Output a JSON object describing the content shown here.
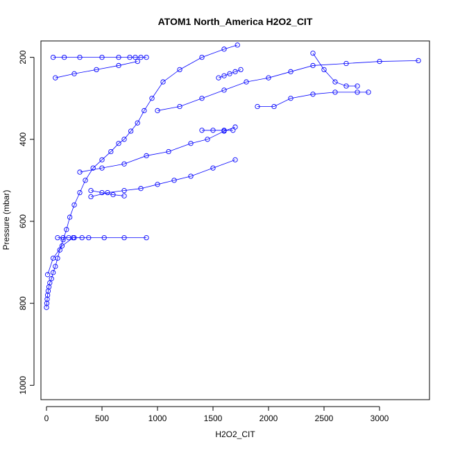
{
  "chart_data": {
    "type": "scatter",
    "title": "ATOM1 North_America H2O2_CIT",
    "xlabel": "H2O2_CIT",
    "ylabel": "Pressure (mbar)",
    "xlim": [
      -50,
      3450
    ],
    "ylim": [
      1035,
      160
    ],
    "y_reversed": true,
    "x_ticks": [
      0,
      500,
      1000,
      1500,
      2000,
      2500,
      3000
    ],
    "y_ticks": [
      200,
      400,
      600,
      800,
      1000
    ],
    "grid": false,
    "legend": "none",
    "marker": "open-circle",
    "connected_by_line": true,
    "color": "#0000ff",
    "series": [
      {
        "x": [
          0,
          3,
          6,
          10,
          15,
          22,
          30,
          45,
          60,
          80,
          100,
          120,
          150,
          180,
          210,
          250,
          300,
          350,
          420,
          500,
          580,
          650,
          700,
          760,
          820,
          880,
          950,
          1050,
          1200,
          1400,
          1600,
          1720
        ],
        "y": [
          810,
          800,
          790,
          780,
          770,
          760,
          750,
          740,
          725,
          710,
          690,
          670,
          645,
          620,
          590,
          560,
          530,
          500,
          470,
          450,
          430,
          410,
          400,
          380,
          360,
          330,
          300,
          260,
          230,
          200,
          180,
          170
        ]
      },
      {
        "x": [
          10,
          60,
          140,
          240,
          380,
          520,
          700,
          900
        ],
        "y": [
          730,
          690,
          660,
          640,
          640,
          640,
          640,
          640
        ]
      },
      {
        "x": [
          60,
          160,
          300,
          500,
          650,
          750,
          800,
          850,
          900
        ],
        "y": [
          200,
          200,
          200,
          200,
          200,
          200,
          200,
          200,
          200
        ]
      },
      {
        "x": [
          80,
          250,
          450,
          650,
          820
        ],
        "y": [
          250,
          240,
          230,
          220,
          210
        ]
      },
      {
        "x": [
          400,
          550,
          700,
          850,
          1000,
          1150,
          1300,
          1500,
          1700
        ],
        "y": [
          540,
          530,
          525,
          520,
          510,
          500,
          490,
          470,
          450
        ]
      },
      {
        "x": [
          300,
          500,
          700,
          900,
          1100,
          1300,
          1450,
          1600,
          1700
        ],
        "y": [
          480,
          470,
          460,
          440,
          430,
          410,
          400,
          380,
          370
        ]
      },
      {
        "x": [
          1000,
          1200,
          1400,
          1600,
          1800,
          2000,
          2200,
          2400,
          2700,
          3000,
          3350
        ],
        "y": [
          330,
          320,
          300,
          280,
          260,
          250,
          235,
          220,
          215,
          210,
          208
        ]
      },
      {
        "x": [
          1900,
          2050,
          2200,
          2400,
          2600,
          2800,
          2900
        ],
        "y": [
          320,
          320,
          300,
          290,
          285,
          285,
          285
        ]
      },
      {
        "x": [
          2400,
          2500,
          2600,
          2700,
          2800
        ],
        "y": [
          190,
          230,
          260,
          270,
          270
        ]
      },
      {
        "x": [
          1400,
          1500,
          1600,
          1680
        ],
        "y": [
          378,
          378,
          378,
          378
        ]
      },
      {
        "x": [
          1550,
          1600,
          1650,
          1700,
          1750
        ],
        "y": [
          250,
          245,
          240,
          235,
          230
        ]
      },
      {
        "x": [
          400,
          500,
          600,
          700
        ],
        "y": [
          525,
          530,
          535,
          538
        ]
      },
      {
        "x": [
          100,
          150,
          200,
          250,
          320
        ],
        "y": [
          640,
          640,
          640,
          640,
          640
        ]
      }
    ]
  }
}
